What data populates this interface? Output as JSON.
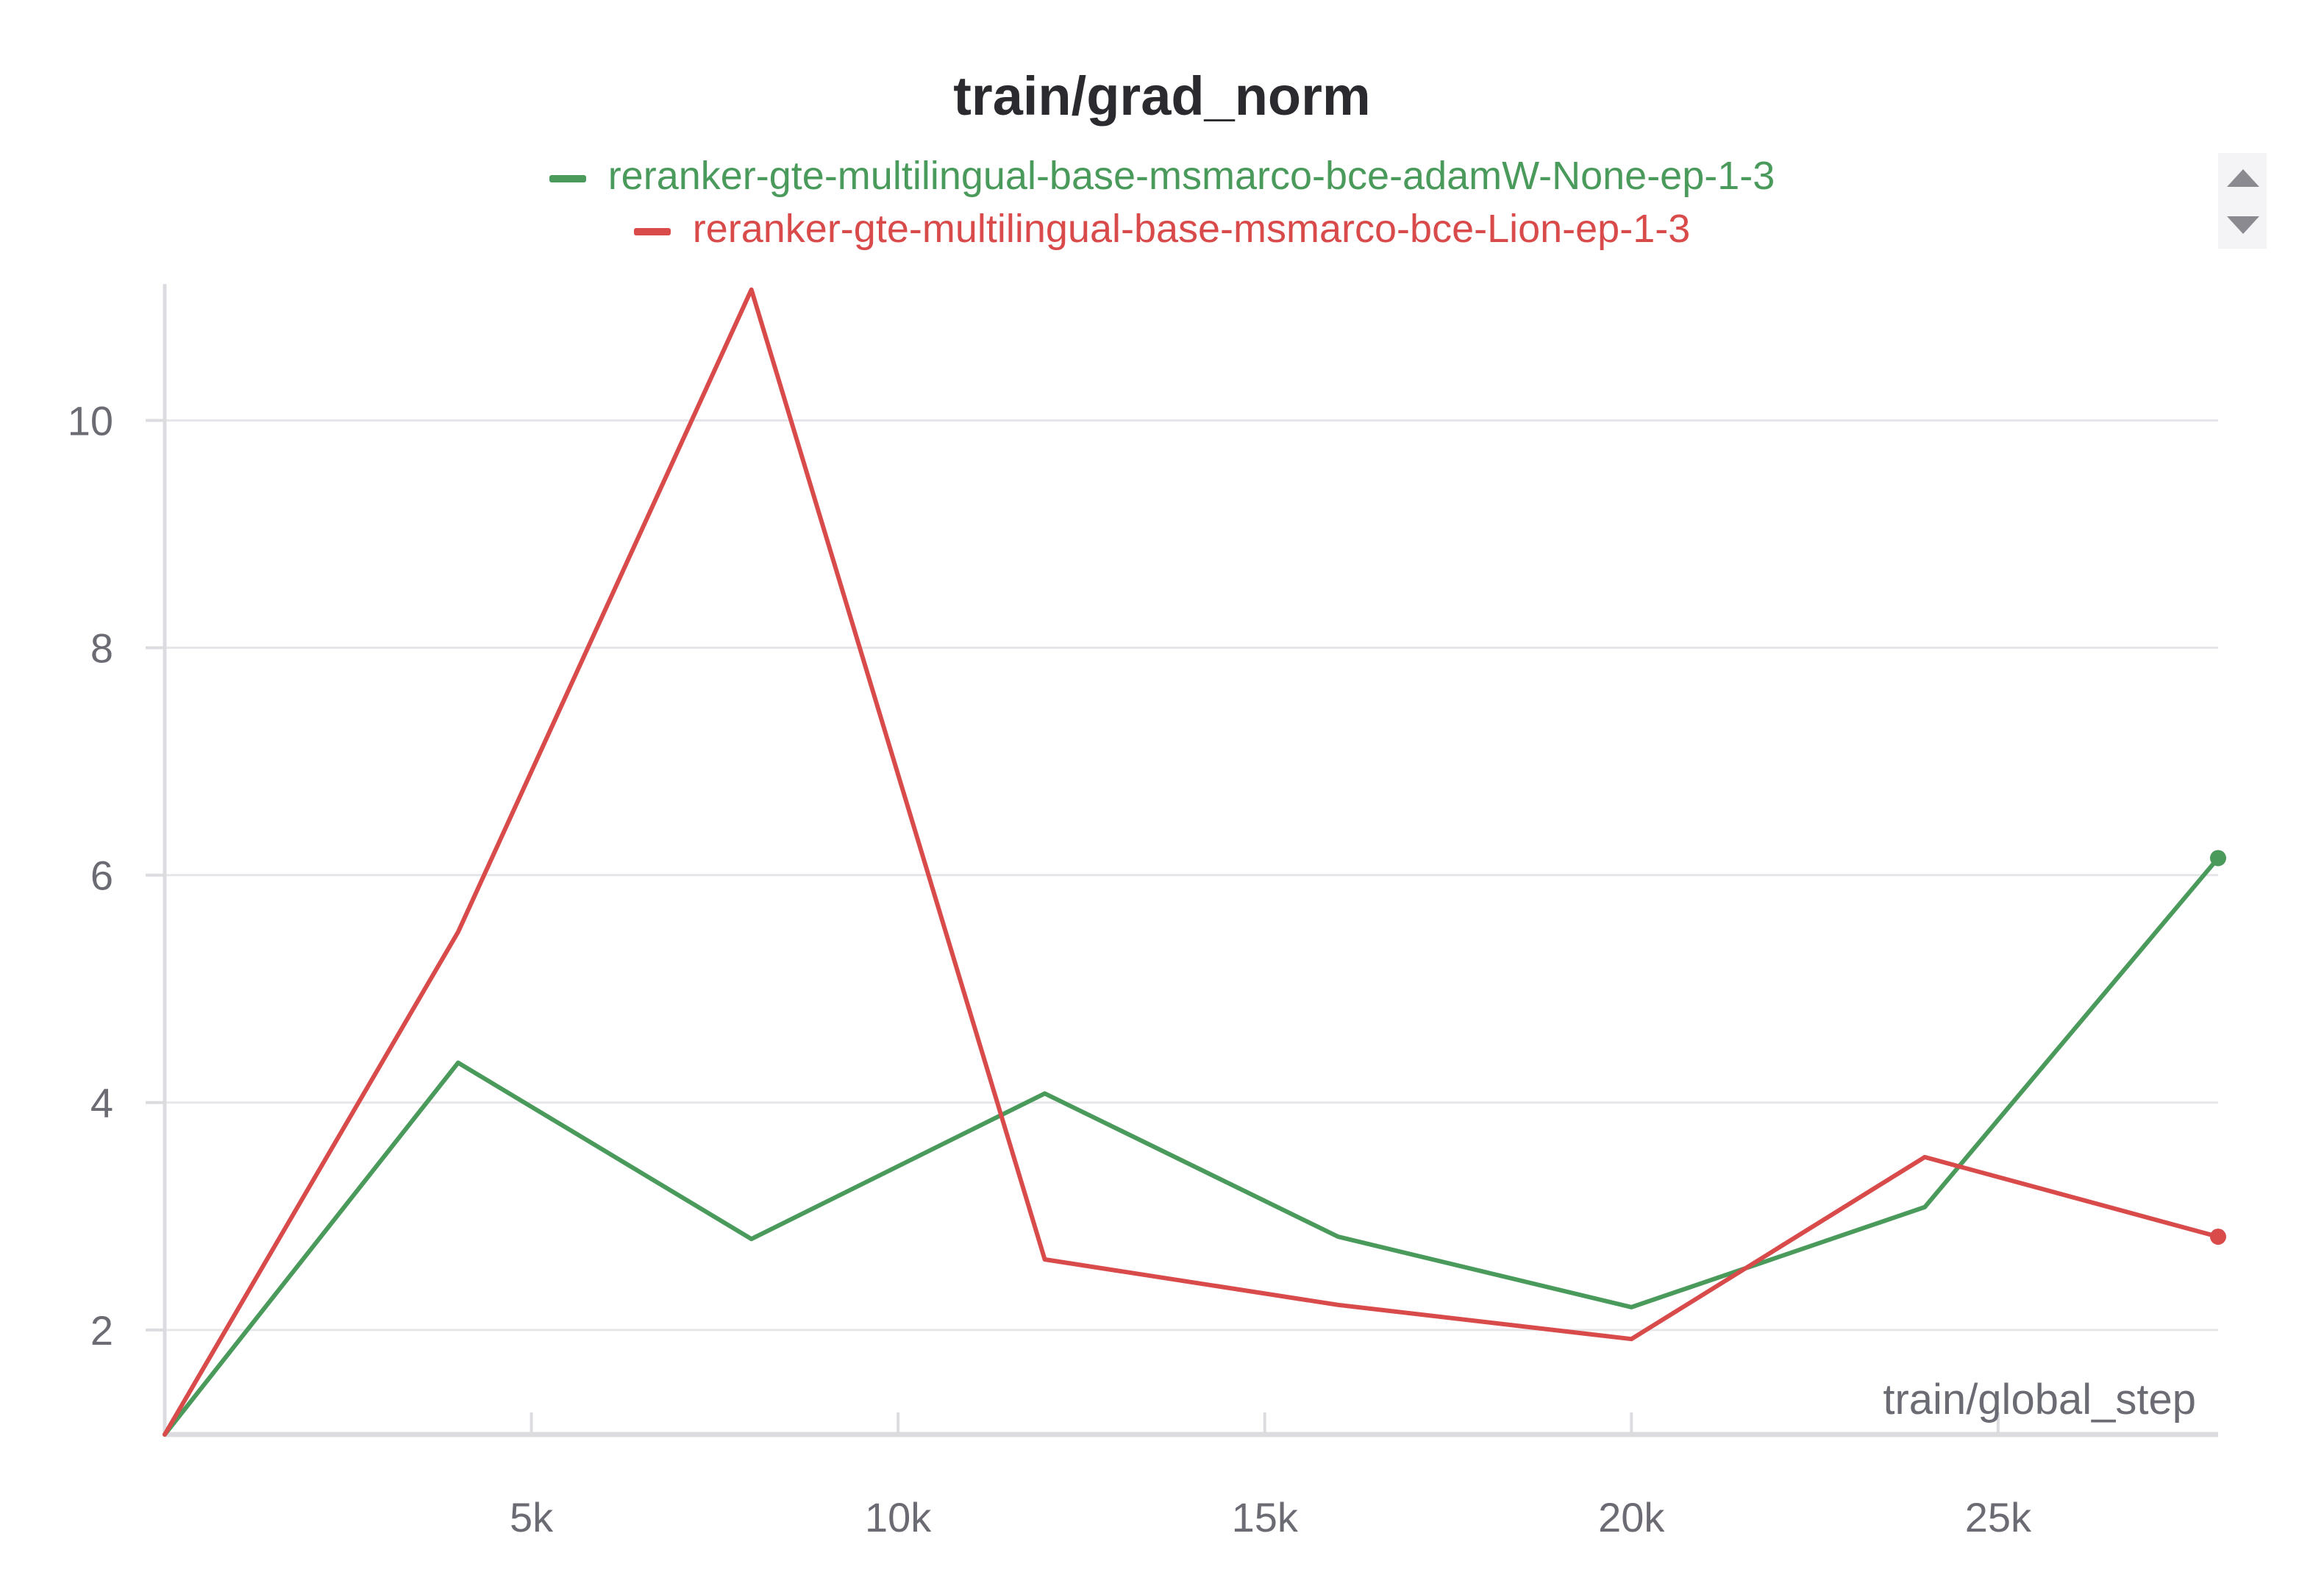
{
  "chart_data": {
    "type": "line",
    "title": "train/grad_norm",
    "xlabel": "train/global_step",
    "ylabel": "",
    "xlim": [
      0,
      28000
    ],
    "ylim": [
      1.08,
      11.2
    ],
    "x_ticks": [
      5000,
      10000,
      15000,
      20000,
      25000
    ],
    "x_tick_labels": [
      "5k",
      "10k",
      "15k",
      "20k",
      "25k"
    ],
    "y_ticks": [
      2,
      4,
      6,
      8,
      10
    ],
    "y_tick_labels": [
      "2",
      "4",
      "6",
      "8",
      "10"
    ],
    "grid": "horizontal",
    "legend_position": "top-center",
    "series": [
      {
        "name": "reranker-gte-multilingual-base-msmarco-bce-adamW-None-ep-1-3",
        "color": "#4a9a5c",
        "x": [
          0,
          4000,
          8000,
          12000,
          16000,
          20000,
          24000,
          28000
        ],
        "y": [
          1.08,
          4.35,
          2.8,
          4.08,
          2.82,
          2.2,
          3.08,
          6.15
        ]
      },
      {
        "name": "reranker-gte-multilingual-base-msmarco-bce-Lion-ep-1-3",
        "color": "#d94a4a",
        "x": [
          0,
          4000,
          8000,
          12000,
          16000,
          20000,
          24000,
          28000
        ],
        "y": [
          1.08,
          5.5,
          11.15,
          2.62,
          2.22,
          1.92,
          3.52,
          2.82
        ]
      }
    ]
  }
}
